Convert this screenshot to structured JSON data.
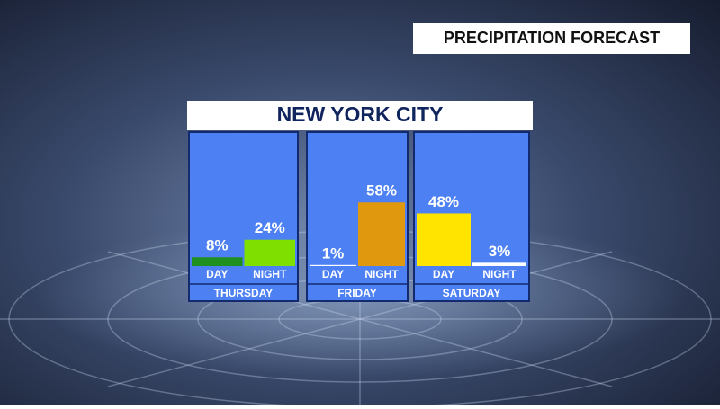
{
  "chart_data": {
    "type": "bar",
    "header": "PRECIPITATION FORECAST",
    "title": "NEW YORK CITY",
    "groups": [
      {
        "name": "THURSDAY",
        "categories": [
          "DAY",
          "NIGHT"
        ],
        "values": [
          8,
          24
        ],
        "value_labels": [
          "8%",
          "24%"
        ],
        "colors": [
          "#1f8f1f",
          "#7fe000"
        ]
      },
      {
        "name": "FRIDAY",
        "categories": [
          "DAY",
          "NIGHT"
        ],
        "values": [
          1,
          58
        ],
        "value_labels": [
          "1%",
          "58%"
        ],
        "colors": [
          "#ffffff",
          "#e0990f"
        ]
      },
      {
        "name": "SATURDAY",
        "categories": [
          "DAY",
          "NIGHT"
        ],
        "values": [
          48,
          3
        ],
        "value_labels": [
          "48%",
          "3%"
        ],
        "colors": [
          "#ffe400",
          "#ffffff"
        ]
      }
    ]
  }
}
